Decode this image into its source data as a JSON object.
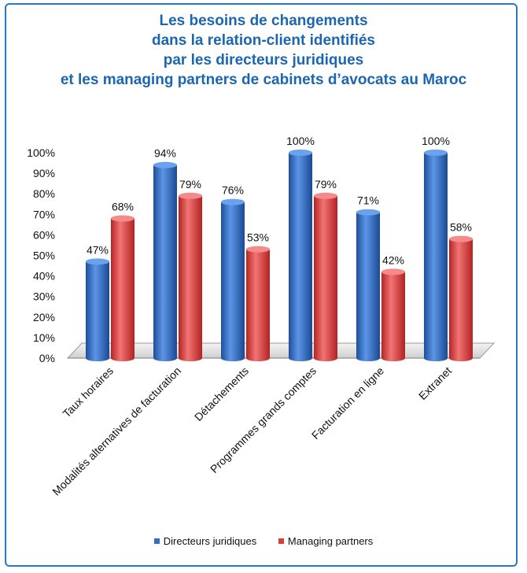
{
  "chart_data": {
    "type": "bar",
    "title_lines": [
      "Les besoins de changements",
      "dans la relation-client identifiés",
      "par les directeurs juridiques",
      "et les managing partners de cabinets d’avocats au Maroc"
    ],
    "categories": [
      "Taux horaires",
      "Modalités alternatives de facturation",
      "Détachements",
      "Programmes grands comptes",
      "Facturation en ligne",
      "Extranet"
    ],
    "series": [
      {
        "name": "Directeurs juridiques",
        "color": "#2f6fc6",
        "values": [
          47,
          94,
          76,
          100,
          71,
          100
        ],
        "labels": [
          "47%",
          "94%",
          "76%",
          "100%",
          "71%",
          "100%"
        ]
      },
      {
        "name": "Managing partners",
        "color": "#e03a3a",
        "values": [
          68,
          79,
          53,
          79,
          42,
          58
        ],
        "labels": [
          "68%",
          "79%",
          "53%",
          "79%",
          "42%",
          "58%"
        ]
      }
    ],
    "ylim": [
      0,
      100
    ],
    "yticks": [
      "0%",
      "10%",
      "20%",
      "30%",
      "40%",
      "50%",
      "60%",
      "70%",
      "80%",
      "90%",
      "100%"
    ],
    "legend_position": "bottom",
    "grid": false
  }
}
